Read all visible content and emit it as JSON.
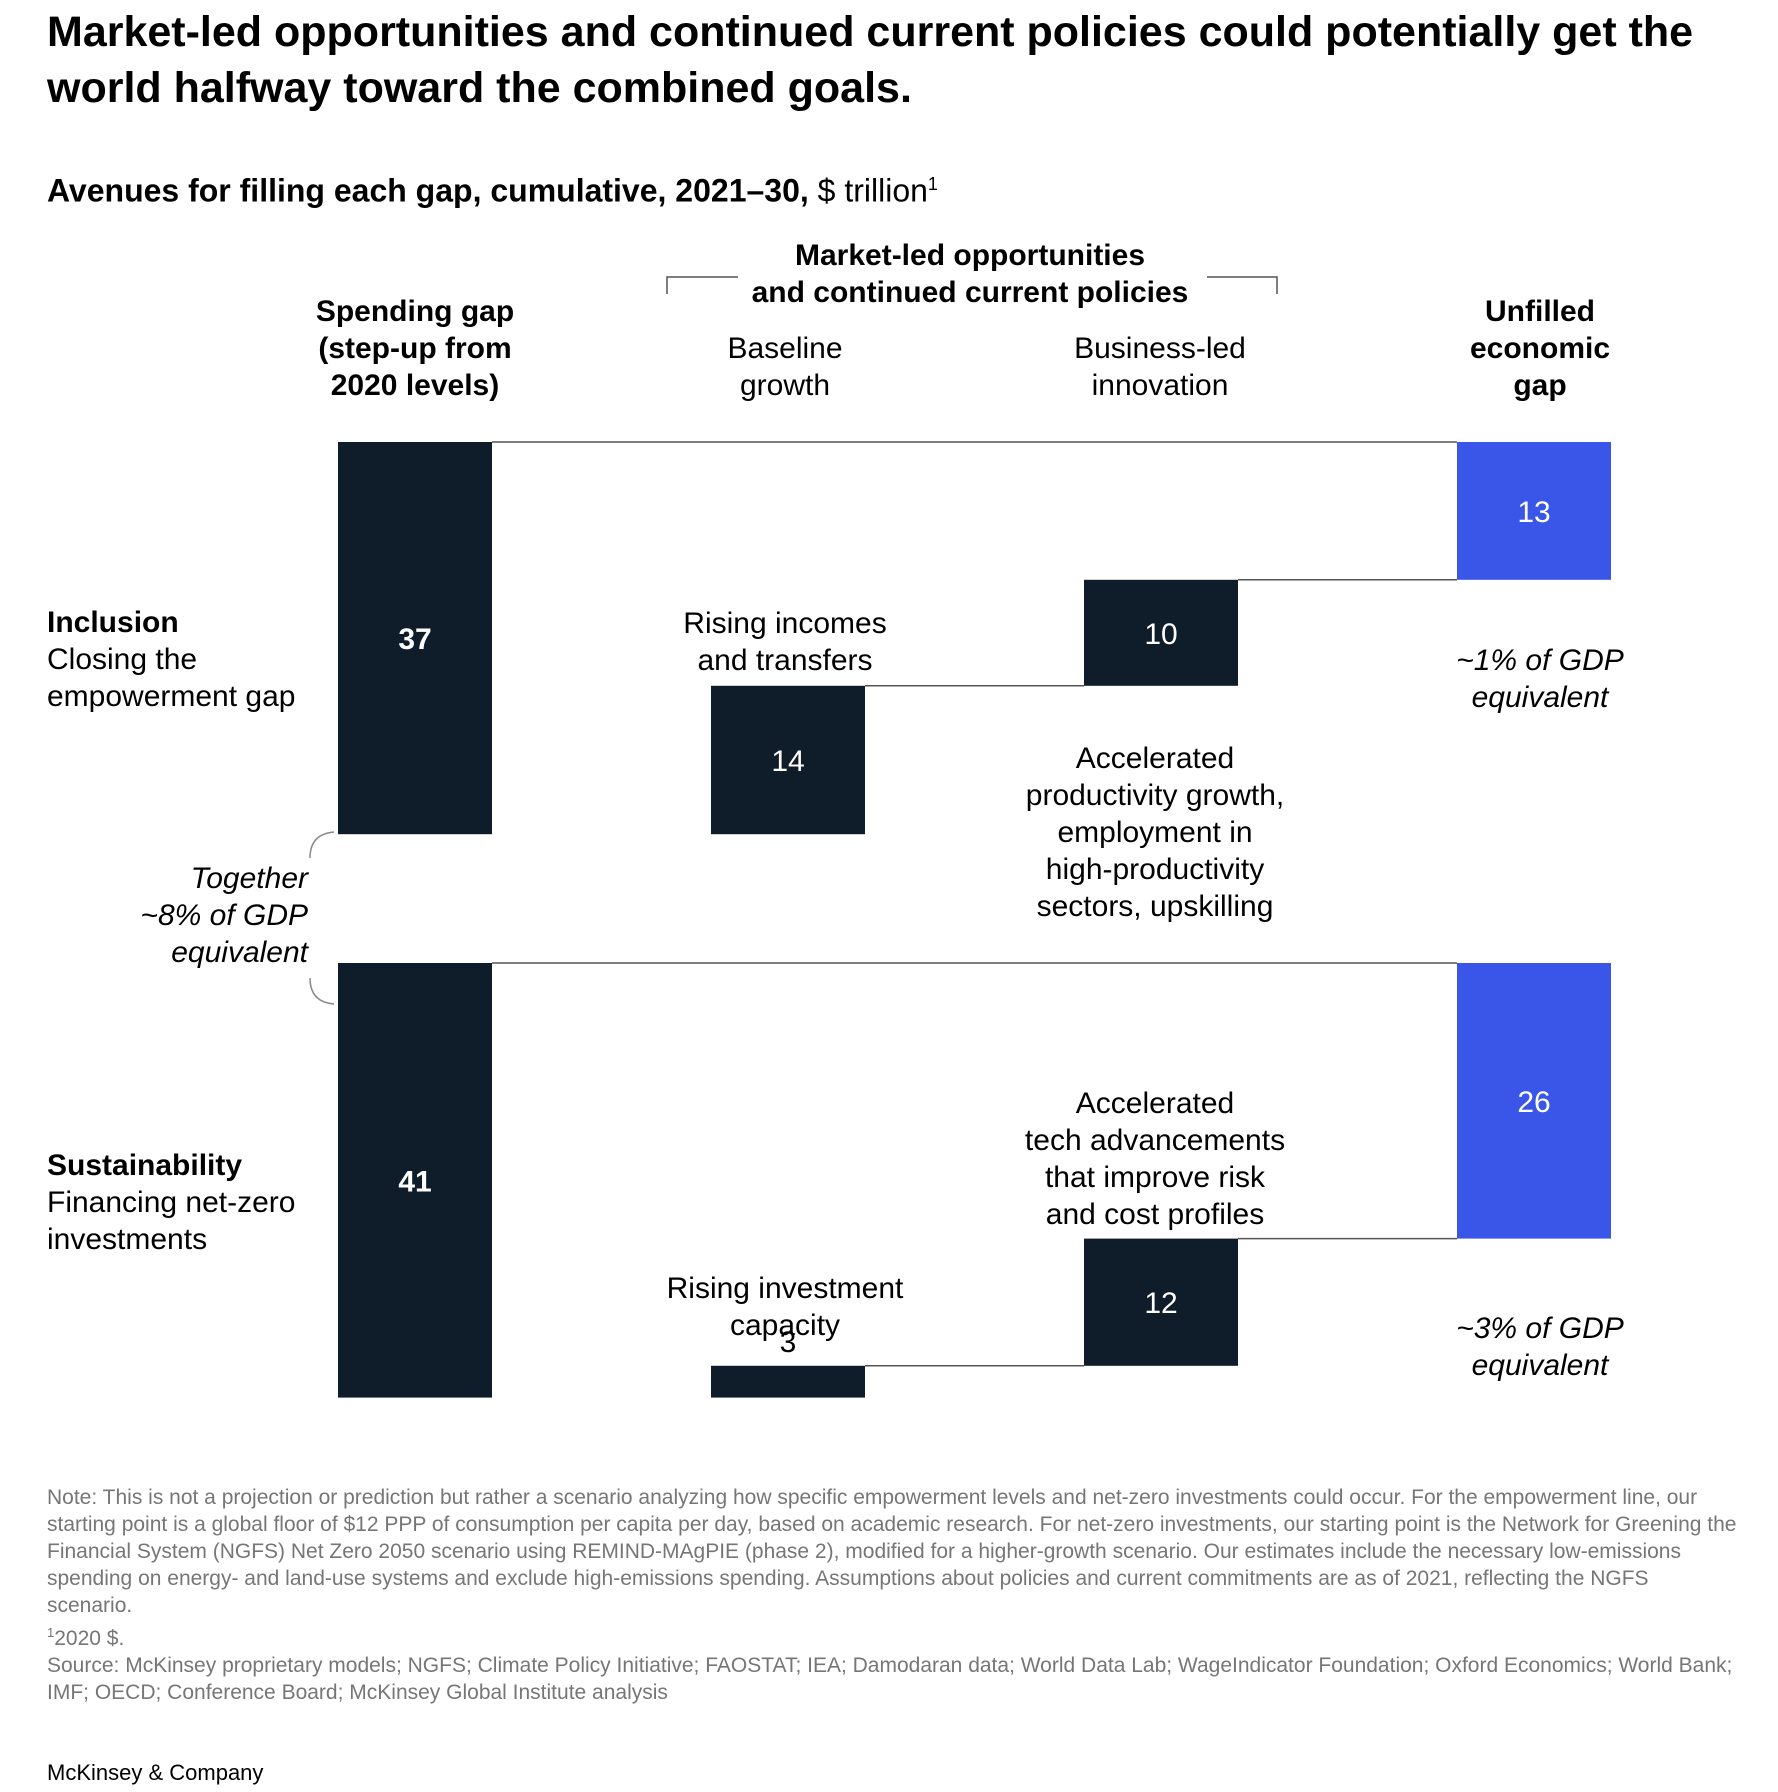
{
  "title": "Market-led opportunities and continued current policies could potentially get the world halfway toward the combined goals.",
  "subtitle": {
    "bold": "Avenues for filling each gap, cumulative, 2021–30,",
    "unit": "$ trillion",
    "footnote_mark": "1"
  },
  "colors": {
    "dark": "#0f1c2a",
    "blue": "#3a56e8",
    "line": "#555555"
  },
  "headers": {
    "spending_gap": [
      "Spending gap",
      "(step-up from",
      "2020 levels)"
    ],
    "market_bracket": [
      "Market-led opportunities",
      "and continued current policies"
    ],
    "baseline": [
      "Baseline",
      "growth"
    ],
    "business": [
      "Business-led",
      "innovation"
    ],
    "unfilled": [
      "Unfilled",
      "economic",
      "gap"
    ]
  },
  "rows": {
    "inclusion": {
      "name": "Inclusion",
      "desc": [
        "Closing the",
        "empowerment gap"
      ]
    },
    "sustainability": {
      "name": "Sustainability",
      "desc": [
        "Financing net-zero",
        "investments"
      ]
    }
  },
  "annotations": {
    "together": [
      "Together",
      "~8% of GDP",
      "equivalent"
    ],
    "inclusion_baseline": [
      "Rising incomes",
      "and transfers"
    ],
    "inclusion_business": [
      "Accelerated",
      "productivity growth,",
      "employment in",
      "high-productivity",
      "sectors, upskilling"
    ],
    "inclusion_unfilled": [
      "~1% of GDP",
      "equivalent"
    ],
    "sustainability_baseline": [
      "Rising investment",
      "capacity"
    ],
    "sustainability_business": [
      "Accelerated",
      "tech advancements",
      "that improve risk",
      "and cost profiles"
    ],
    "sustainability_unfilled": [
      "~3% of GDP",
      "equivalent"
    ]
  },
  "chart_data": [
    {
      "type": "bar",
      "subtype": "waterfall",
      "group": "Inclusion",
      "categories": [
        "Spending gap",
        "Baseline growth",
        "Business-led innovation",
        "Unfilled economic gap"
      ],
      "values": [
        37,
        14,
        10,
        13
      ],
      "labels": [
        "37",
        "14",
        "10",
        "13"
      ]
    },
    {
      "type": "bar",
      "subtype": "waterfall",
      "group": "Sustainability",
      "categories": [
        "Spending gap",
        "Baseline growth",
        "Business-led innovation",
        "Unfilled economic gap"
      ],
      "values": [
        41,
        3,
        12,
        26
      ],
      "labels": [
        "41",
        "3",
        "12",
        "26"
      ]
    }
  ],
  "notes": {
    "note": "Note: This is not a projection or prediction but rather a scenario analyzing how specific empowerment levels and net-zero investments could occur. For the empowerment line, our starting point is a global floor of $12 PPP of consumption per capita per day, based on academic research. For net-zero investments, our starting point is the Network for Greening the Financial System (NGFS) Net Zero 2050 scenario using REMIND-MAgPIE (phase 2), modified for a higher-growth scenario. Our estimates include the necessary low-emissions spending on energy- and land-use systems and exclude high-emissions spending. Assumptions about policies and current commitments are as of 2021, reflecting the NGFS scenario.",
    "footnote_mark": "1",
    "footnote": "2020 $.",
    "source": "Source: McKinsey proprietary models; NGFS; Climate Policy Initiative; FAOSTAT; IEA; Damodaran data; World Data Lab; WageIndicator Foundation; Oxford Economics; World Bank; IMF; OECD; Conference Board; McKinsey Global Institute analysis"
  },
  "footer": "McKinsey & Company"
}
